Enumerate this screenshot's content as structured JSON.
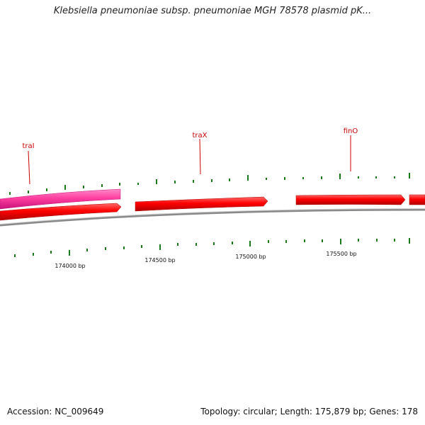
{
  "title": "Klebsiella pneumoniae subsp. pneumoniae MGH 78578 plasmid pK...",
  "footer": {
    "accession": "Accession: NC_009649",
    "topology": "Topology: circular; Length: 175,879 bp; Genes: 178"
  },
  "genes": [
    {
      "name": "traI",
      "label": "traI"
    },
    {
      "name": "traX",
      "label": "traX"
    },
    {
      "name": "finO",
      "label": "finO"
    }
  ],
  "scale_labels": [
    "174000 bp",
    "174500 bp",
    "175000 bp",
    "175500 bp"
  ],
  "colors": {
    "forward_gene": "#ff0000",
    "highlight_gene": "#ff3fa0",
    "backbone": "#888888",
    "gene_label": "#cc0000",
    "tick": "#1a7a1a"
  }
}
